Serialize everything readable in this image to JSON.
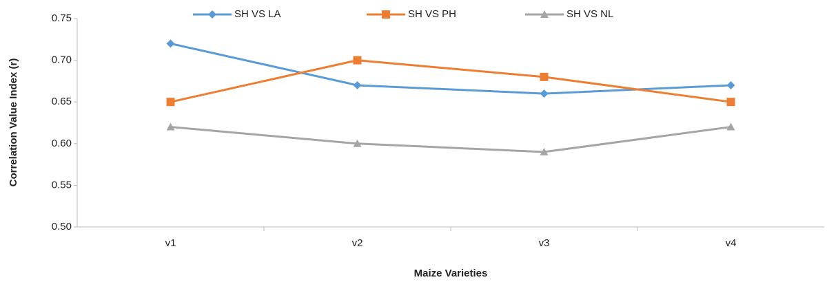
{
  "chart_data": {
    "type": "line",
    "x_label": "Maize Varieties",
    "y_label": "Correlation Value Index (r)",
    "categories": [
      "v1",
      "v2",
      "v3",
      "v4"
    ],
    "series": [
      {
        "name": "SH VS LA",
        "color": "#5b9bd5",
        "marker": "diamond",
        "values": [
          0.72,
          0.67,
          0.66,
          0.67
        ]
      },
      {
        "name": "SH VS PH",
        "color": "#ed7d31",
        "marker": "square",
        "values": [
          0.65,
          0.7,
          0.68,
          0.65
        ]
      },
      {
        "name": "SH VS NL",
        "color": "#a5a5a5",
        "marker": "triangle",
        "values": [
          0.62,
          0.6,
          0.59,
          0.62
        ]
      }
    ],
    "ylim": [
      0.5,
      0.75
    ],
    "yticks": [
      {
        "value": 0.5,
        "label": "0.50"
      },
      0.55,
      {
        "value": 0.6,
        "label": "0.60"
      },
      0.65,
      {
        "value": 0.7,
        "label": "0.70"
      },
      0.75
    ],
    "grid": false,
    "legend": "top"
  }
}
